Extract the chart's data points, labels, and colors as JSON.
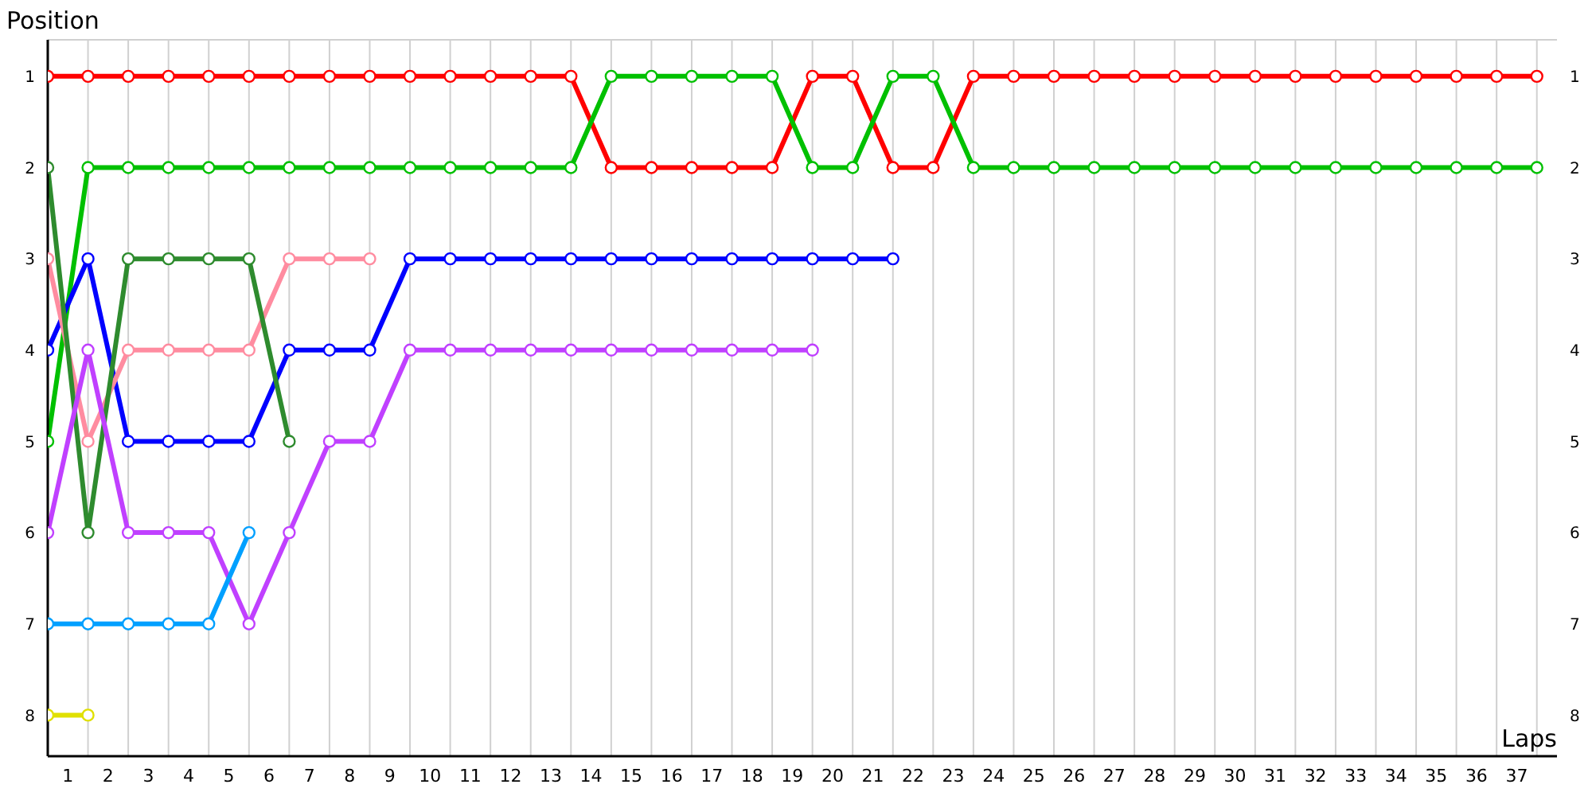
{
  "chart_data": {
    "type": "line",
    "xlabel": "Laps",
    "ylabel": "Position",
    "x": [
      0,
      1,
      2,
      3,
      4,
      5,
      6,
      7,
      8,
      9,
      10,
      11,
      12,
      13,
      14,
      15,
      16,
      17,
      18,
      19,
      20,
      21,
      22,
      23,
      24,
      25,
      26,
      27,
      28,
      29,
      30,
      31,
      32,
      33,
      34,
      35,
      36,
      37
    ],
    "series": [
      {
        "color": "#ff0000",
        "values": [
          1,
          1,
          1,
          1,
          1,
          1,
          1,
          1,
          1,
          1,
          1,
          1,
          1,
          1,
          2,
          2,
          2,
          2,
          2,
          1,
          1,
          2,
          2,
          1,
          1,
          1,
          1,
          1,
          1,
          1,
          1,
          1,
          1,
          1,
          1,
          1,
          1,
          1
        ]
      },
      {
        "color": "#00c000",
        "values": [
          5,
          2,
          2,
          2,
          2,
          2,
          2,
          2,
          2,
          2,
          2,
          2,
          2,
          2,
          1,
          1,
          1,
          1,
          1,
          2,
          2,
          1,
          1,
          2,
          2,
          2,
          2,
          2,
          2,
          2,
          2,
          2,
          2,
          2,
          2,
          2,
          2,
          2
        ]
      },
      {
        "color": "#0000ff",
        "values": [
          4,
          3,
          5,
          5,
          5,
          5,
          4,
          4,
          4,
          3,
          3,
          3,
          3,
          3,
          3,
          3,
          3,
          3,
          3,
          3,
          3,
          3,
          null,
          null,
          null,
          null,
          null,
          null,
          null,
          null,
          null,
          null,
          null,
          null,
          null,
          null,
          null,
          null
        ]
      },
      {
        "color": "#ff8ca0",
        "values": [
          3,
          5,
          4,
          4,
          4,
          4,
          3,
          3,
          3,
          null,
          null,
          null,
          null,
          null,
          null,
          null,
          null,
          null,
          null,
          null,
          null,
          null,
          null,
          null,
          null,
          null,
          null,
          null,
          null,
          null,
          null,
          null,
          null,
          null,
          null,
          null,
          null,
          null
        ]
      },
      {
        "color": "#2e8b2e",
        "values": [
          2,
          6,
          3,
          3,
          3,
          3,
          5,
          null,
          null,
          null,
          null,
          null,
          null,
          null,
          null,
          null,
          null,
          null,
          null,
          null,
          null,
          null,
          null,
          null,
          null,
          null,
          null,
          null,
          null,
          null,
          null,
          null,
          null,
          null,
          null,
          null,
          null,
          null
        ]
      },
      {
        "color": "#c040ff",
        "values": [
          6,
          4,
          6,
          6,
          6,
          7,
          6,
          5,
          5,
          4,
          4,
          4,
          4,
          4,
          4,
          4,
          4,
          4,
          4,
          4,
          null,
          null,
          null,
          null,
          null,
          null,
          null,
          null,
          null,
          null,
          null,
          null,
          null,
          null,
          null,
          null,
          null,
          null
        ]
      },
      {
        "color": "#00a0ff",
        "values": [
          7,
          7,
          7,
          7,
          7,
          6,
          null,
          null,
          null,
          null,
          null,
          null,
          null,
          null,
          null,
          null,
          null,
          null,
          null,
          null,
          null,
          null,
          null,
          null,
          null,
          null,
          null,
          null,
          null,
          null,
          null,
          null,
          null,
          null,
          null,
          null,
          null,
          null
        ]
      },
      {
        "color": "#e0e000",
        "values": [
          8,
          8,
          null,
          null,
          null,
          null,
          null,
          null,
          null,
          null,
          null,
          null,
          null,
          null,
          null,
          null,
          null,
          null,
          null,
          null,
          null,
          null,
          null,
          null,
          null,
          null,
          null,
          null,
          null,
          null,
          null,
          null,
          null,
          null,
          null,
          null,
          null,
          null
        ]
      }
    ],
    "xlim": [
      0,
      37.5
    ],
    "xticks": [
      {
        "value": 0,
        "label": null
      },
      {
        "value": 0.5,
        "label": "1"
      },
      {
        "value": 1,
        "label": null
      },
      {
        "value": 1.5,
        "label": "2"
      },
      {
        "value": 2,
        "label": null
      },
      {
        "value": 2.5,
        "label": "3"
      },
      {
        "value": 3,
        "label": null
      },
      {
        "value": 3.5,
        "label": "4"
      },
      {
        "value": 4,
        "label": null
      },
      {
        "value": 4.5,
        "label": "5"
      },
      {
        "value": 5,
        "label": null
      },
      {
        "value": 5.5,
        "label": "6"
      },
      {
        "value": 6,
        "label": null
      },
      {
        "value": 6.5,
        "label": "7"
      },
      {
        "value": 7,
        "label": null
      },
      {
        "value": 7.5,
        "label": "8"
      },
      {
        "value": 8,
        "label": null
      },
      {
        "value": 8.5,
        "label": "9"
      },
      {
        "value": 9,
        "label": null
      },
      {
        "value": 9.5,
        "label": "10"
      },
      {
        "value": 10,
        "label": null
      },
      {
        "value": 10.5,
        "label": "11"
      },
      {
        "value": 11,
        "label": null
      },
      {
        "value": 11.5,
        "label": "12"
      },
      {
        "value": 12,
        "label": null
      },
      {
        "value": 12.5,
        "label": "13"
      },
      {
        "value": 13,
        "label": null
      },
      {
        "value": 13.5,
        "label": "14"
      },
      {
        "value": 14,
        "label": null
      },
      {
        "value": 14.5,
        "label": "15"
      },
      {
        "value": 15,
        "label": null
      },
      {
        "value": 15.5,
        "label": "16"
      },
      {
        "value": 16,
        "label": null
      },
      {
        "value": 16.5,
        "label": "17"
      },
      {
        "value": 17,
        "label": null
      },
      {
        "value": 17.5,
        "label": "18"
      },
      {
        "value": 18,
        "label": null
      },
      {
        "value": 18.5,
        "label": "19"
      },
      {
        "value": 19,
        "label": null
      },
      {
        "value": 19.5,
        "label": "20"
      },
      {
        "value": 20,
        "label": null
      },
      {
        "value": 20.5,
        "label": "21"
      },
      {
        "value": 21,
        "label": null
      },
      {
        "value": 21.5,
        "label": "22"
      },
      {
        "value": 22,
        "label": null
      },
      {
        "value": 22.5,
        "label": "23"
      },
      {
        "value": 23,
        "label": null
      },
      {
        "value": 23.5,
        "label": "24"
      },
      {
        "value": 24,
        "label": null
      },
      {
        "value": 24.5,
        "label": "25"
      },
      {
        "value": 25,
        "label": null
      },
      {
        "value": 25.5,
        "label": "26"
      },
      {
        "value": 26,
        "label": null
      },
      {
        "value": 26.5,
        "label": "27"
      },
      {
        "value": 27,
        "label": null
      },
      {
        "value": 27.5,
        "label": "28"
      },
      {
        "value": 28,
        "label": null
      },
      {
        "value": 28.5,
        "label": "29"
      },
      {
        "value": 29,
        "label": null
      },
      {
        "value": 29.5,
        "label": "30"
      },
      {
        "value": 30,
        "label": null
      },
      {
        "value": 30.5,
        "label": "31"
      },
      {
        "value": 31,
        "label": null
      },
      {
        "value": 31.5,
        "label": "32"
      },
      {
        "value": 32,
        "label": null
      },
      {
        "value": 32.5,
        "label": "33"
      },
      {
        "value": 33,
        "label": null
      },
      {
        "value": 33.5,
        "label": "34"
      },
      {
        "value": 34,
        "label": null
      },
      {
        "value": 34.5,
        "label": "35"
      },
      {
        "value": 35,
        "label": null
      },
      {
        "value": 35.5,
        "label": "36"
      },
      {
        "value": 36,
        "label": null
      },
      {
        "value": 36.5,
        "label": "37"
      },
      {
        "value": 37,
        "label": null
      }
    ],
    "ylim": [
      8.45,
      0.6
    ],
    "yticks": [
      1,
      2,
      3,
      4,
      5,
      6,
      7,
      8
    ],
    "y2lim": [
      8.45,
      0.6
    ],
    "y2ticks": [
      1,
      2,
      3,
      4,
      5,
      6,
      7,
      8
    ],
    "grid": true,
    "marker": "circle",
    "line_style": "solid"
  }
}
